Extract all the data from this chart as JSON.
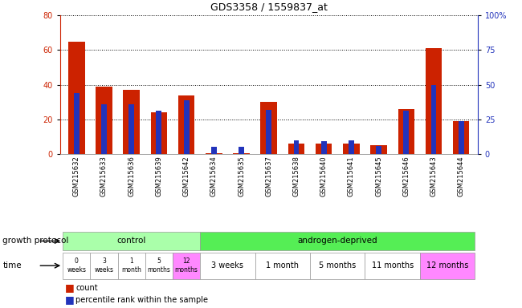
{
  "title": "GDS3358 / 1559837_at",
  "samples": [
    "GSM215632",
    "GSM215633",
    "GSM215636",
    "GSM215639",
    "GSM215642",
    "GSM215634",
    "GSM215635",
    "GSM215637",
    "GSM215638",
    "GSM215640",
    "GSM215641",
    "GSM215645",
    "GSM215646",
    "GSM215643",
    "GSM215644"
  ],
  "red_values": [
    65,
    39,
    37,
    24,
    34,
    0.5,
    0.5,
    30,
    6,
    6,
    6,
    5,
    26,
    61,
    19
  ],
  "blue_pct": [
    44,
    36,
    36,
    31,
    39,
    5,
    5,
    32,
    10,
    9,
    10,
    6,
    31,
    50,
    24
  ],
  "ylim_left": [
    0,
    80
  ],
  "ylim_right": [
    0,
    100
  ],
  "yticks_left": [
    0,
    20,
    40,
    60,
    80
  ],
  "yticks_right": [
    0,
    25,
    50,
    75,
    100
  ],
  "ytick_labels_right": [
    "0",
    "25",
    "50",
    "75",
    "100%"
  ],
  "red_color": "#CC2200",
  "blue_color": "#2233BB",
  "bar_width": 0.6,
  "blue_bar_width": 0.2,
  "control_color": "#AAFFAA",
  "androgen_color": "#55EE55",
  "time_bg_color": "#FF88FF",
  "time_white_color": "#FFFFFF",
  "legend_count_label": "count",
  "legend_pct_label": "percentile rank within the sample",
  "xlabel_growth": "growth protocol",
  "xlabel_time": "time",
  "title_fontsize": 9,
  "axis_label_fontsize": 7,
  "tick_fontsize": 7,
  "sample_fontsize": 6,
  "annotation_fontsize": 7.5
}
